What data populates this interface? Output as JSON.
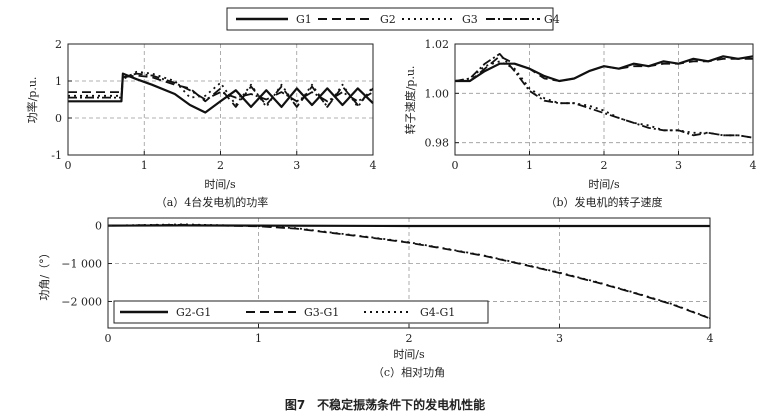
{
  "figure_caption": "图7　不稳定振荡条件下的发电机性能",
  "top_legend": [
    "G1",
    "G2",
    "G3",
    "G4"
  ],
  "chart_data": [
    {
      "type": "line",
      "caption": "（a）4台发电机的功率",
      "xlabel": "时间/s",
      "ylabel": "功率/p.u.",
      "xlim": [
        0,
        4
      ],
      "ylim": [
        -1,
        2
      ],
      "xticks": [
        "0",
        "1",
        "2",
        "3",
        "4"
      ],
      "yticks": [
        "-1",
        "0",
        "1",
        "2"
      ],
      "grid": true,
      "series": [
        {
          "name": "G1",
          "x": [
            0,
            0.2,
            0.5,
            0.7,
            0.72,
            0.9,
            1.1,
            1.4,
            1.6,
            1.8,
            2.0,
            2.2,
            2.4,
            2.6,
            2.8,
            3.0,
            3.2,
            3.4,
            3.6,
            3.8,
            4.0
          ],
          "y": [
            0.45,
            0.45,
            0.45,
            0.45,
            1.2,
            1.05,
            0.9,
            0.65,
            0.35,
            0.15,
            0.45,
            0.75,
            0.3,
            0.75,
            0.3,
            0.8,
            0.35,
            0.8,
            0.35,
            0.8,
            0.4
          ]
        },
        {
          "name": "G2",
          "x": [
            0,
            0.2,
            0.5,
            0.7,
            0.72,
            0.9,
            1.1,
            1.4,
            1.6,
            1.8,
            2.0,
            2.2,
            2.4,
            2.6,
            2.8,
            3.0,
            3.2,
            3.4,
            3.6,
            3.8,
            4.0
          ],
          "y": [
            0.7,
            0.7,
            0.7,
            0.7,
            1.1,
            1.15,
            1.1,
            0.9,
            0.8,
            0.45,
            0.8,
            0.3,
            0.85,
            0.35,
            0.85,
            0.3,
            0.85,
            0.3,
            0.85,
            0.35,
            0.8
          ]
        },
        {
          "name": "G3",
          "x": [
            0,
            0.2,
            0.5,
            0.7,
            0.72,
            0.9,
            1.1,
            1.4,
            1.6,
            1.8,
            2.0,
            2.2,
            2.4,
            2.6,
            2.8,
            3.0,
            3.2,
            3.4,
            3.6,
            3.8,
            4.0
          ],
          "y": [
            0.6,
            0.6,
            0.6,
            0.6,
            1.05,
            1.25,
            1.2,
            1.0,
            0.55,
            0.6,
            0.95,
            0.35,
            0.9,
            0.3,
            0.9,
            0.3,
            0.9,
            0.3,
            0.9,
            0.3,
            0.85
          ]
        },
        {
          "name": "G4",
          "x": [
            0,
            0.2,
            0.5,
            0.7,
            0.72,
            0.9,
            1.1,
            1.4,
            1.6,
            1.8,
            2.0,
            2.2,
            2.4,
            2.6,
            2.8,
            3.0,
            3.2,
            3.4,
            3.6,
            3.8,
            4.0
          ],
          "y": [
            0.55,
            0.55,
            0.55,
            0.55,
            1.1,
            1.2,
            1.15,
            0.95,
            0.75,
            0.5,
            0.7,
            0.55,
            0.65,
            0.5,
            0.7,
            0.45,
            0.7,
            0.45,
            0.7,
            0.45,
            0.7
          ]
        }
      ]
    },
    {
      "type": "line",
      "caption": "（b）发电机的转子速度",
      "xlabel": "时间/s",
      "ylabel": "转子速度/p.u.",
      "xlim": [
        0,
        4
      ],
      "ylim": [
        0.975,
        1.02
      ],
      "xticks": [
        "0",
        "1",
        "2",
        "3",
        "4"
      ],
      "yticks": [
        "0.98",
        "1.00",
        "1.02"
      ],
      "grid": true,
      "series": [
        {
          "name": "G1",
          "x": [
            0,
            0.2,
            0.4,
            0.6,
            0.8,
            1.0,
            1.2,
            1.4,
            1.6,
            1.8,
            2.0,
            2.2,
            2.4,
            2.6,
            2.8,
            3.0,
            3.2,
            3.4,
            3.6,
            3.8,
            4.0
          ],
          "y": [
            1.005,
            1.005,
            1.009,
            1.012,
            1.012,
            1.01,
            1.007,
            1.005,
            1.006,
            1.009,
            1.011,
            1.01,
            1.012,
            1.011,
            1.013,
            1.012,
            1.014,
            1.013,
            1.015,
            1.014,
            1.015
          ]
        },
        {
          "name": "G2",
          "x": [
            0,
            0.2,
            0.4,
            0.6,
            0.8,
            1.0,
            1.2,
            1.4,
            1.6,
            1.8,
            2.0,
            2.2,
            2.4,
            2.6,
            2.8,
            3.0,
            3.2,
            3.4,
            3.6,
            3.8,
            4.0
          ],
          "y": [
            1.005,
            1.005,
            1.01,
            1.015,
            1.012,
            1.01,
            1.006,
            1.005,
            1.006,
            1.009,
            1.011,
            1.01,
            1.011,
            1.011,
            1.012,
            1.012,
            1.013,
            1.013,
            1.014,
            1.014,
            1.014
          ]
        },
        {
          "name": "G3",
          "x": [
            0,
            0.2,
            0.4,
            0.6,
            0.8,
            1.0,
            1.2,
            1.4,
            1.6,
            1.8,
            2.0,
            2.2,
            2.4,
            2.6,
            2.8,
            3.0,
            3.2,
            3.4,
            3.6,
            3.8,
            4.0
          ],
          "y": [
            1.005,
            1.006,
            1.011,
            1.013,
            1.01,
            1.002,
            0.998,
            0.996,
            0.996,
            0.995,
            0.993,
            0.99,
            0.988,
            0.987,
            0.985,
            0.985,
            0.984,
            0.984,
            0.983,
            0.983,
            0.982
          ]
        },
        {
          "name": "G4",
          "x": [
            0,
            0.2,
            0.4,
            0.6,
            0.8,
            1.0,
            1.2,
            1.4,
            1.6,
            1.8,
            2.0,
            2.2,
            2.4,
            2.6,
            2.8,
            3.0,
            3.2,
            3.4,
            3.6,
            3.8,
            4.0
          ],
          "y": [
            1.005,
            1.006,
            1.012,
            1.016,
            1.009,
            1.001,
            0.997,
            0.996,
            0.996,
            0.994,
            0.992,
            0.99,
            0.988,
            0.986,
            0.985,
            0.985,
            0.983,
            0.984,
            0.983,
            0.983,
            0.982
          ]
        }
      ]
    },
    {
      "type": "line",
      "caption": "（c）相对功角",
      "xlabel": "时间/s",
      "ylabel": "功角/（°）",
      "xlim": [
        0,
        4
      ],
      "ylim": [
        -2700,
        200
      ],
      "xticks": [
        "0",
        "1",
        "2",
        "3",
        "4"
      ],
      "yticks": [
        "0",
        "−1 000",
        "−2 000"
      ],
      "yticks_values": [
        0,
        -1000,
        -2000
      ],
      "grid": true,
      "legend": [
        "G2-G1",
        "G3-G1",
        "G4-G1"
      ],
      "series": [
        {
          "name": "G2-G1",
          "x": [
            0,
            0.5,
            1,
            1.5,
            2,
            2.5,
            3,
            3.5,
            4
          ],
          "y": [
            0,
            5,
            0,
            -5,
            -10,
            -10,
            -10,
            -10,
            -10
          ]
        },
        {
          "name": "G3-G1",
          "x": [
            0,
            0.5,
            1,
            1.25,
            1.5,
            1.75,
            2,
            2.25,
            2.5,
            2.75,
            3,
            3.25,
            3.5,
            3.75,
            4
          ],
          "y": [
            0,
            20,
            -20,
            -80,
            -200,
            -320,
            -450,
            -620,
            -800,
            -1020,
            -1250,
            -1500,
            -1780,
            -2080,
            -2450
          ]
        },
        {
          "name": "G4-G1",
          "x": [
            0,
            0.5,
            1,
            1.25,
            1.5,
            1.75,
            2,
            2.25,
            2.5,
            2.75,
            3,
            3.25,
            3.5,
            3.75,
            4
          ],
          "y": [
            0,
            30,
            -10,
            -70,
            -190,
            -310,
            -440,
            -610,
            -790,
            -1010,
            -1240,
            -1490,
            -1770,
            -2070,
            -2440
          ]
        }
      ]
    }
  ]
}
